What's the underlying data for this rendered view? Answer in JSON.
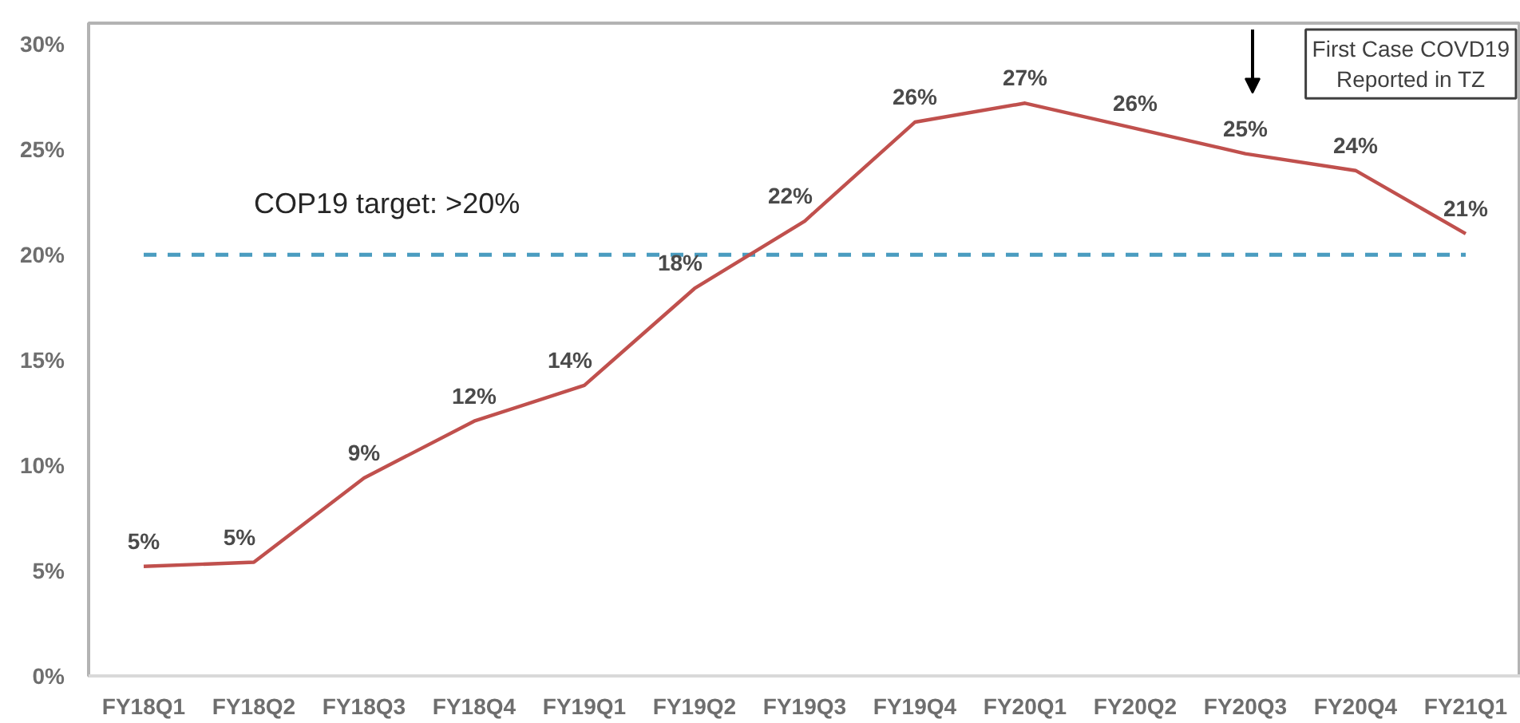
{
  "chart_data": {
    "type": "line",
    "categories": [
      "FY18Q1",
      "FY18Q2",
      "FY18Q3",
      "FY18Q4",
      "FY19Q1",
      "FY19Q2",
      "FY19Q3",
      "FY19Q4",
      "FY20Q1",
      "FY20Q2",
      "FY20Q3",
      "FY20Q4",
      "FY21Q1"
    ],
    "series": [
      {
        "color": "#c0504d",
        "values": [
          5.2,
          5.4,
          9.4,
          12.1,
          13.8,
          18.4,
          21.6,
          26.3,
          27.2,
          26.0,
          24.8,
          24.0,
          21.0
        ],
        "value_labels": [
          "5%",
          "5%",
          "9%",
          "12%",
          "14%",
          "18%",
          "22%",
          "26%",
          "27%",
          "26%",
          "25%",
          "24%",
          "21%"
        ]
      }
    ],
    "ylim": [
      0,
      31
    ],
    "yticks": [
      {
        "value": 0,
        "label": "0%"
      },
      {
        "value": 5,
        "label": "5%"
      },
      {
        "value": 10,
        "label": "10%"
      },
      {
        "value": 15,
        "label": "15%"
      },
      {
        "value": 20,
        "label": "20%"
      },
      {
        "value": 25,
        "label": "25%"
      },
      {
        "value": 30,
        "label": "30%"
      }
    ],
    "ref_lines": [
      {
        "axis": "y",
        "value": 20,
        "label": "COP19 target: >20%",
        "color": "#4a9cc0",
        "line_style": "dashed"
      }
    ],
    "annotations": [
      "First Case COVD19\nReported in TZ"
    ],
    "grid": false
  }
}
